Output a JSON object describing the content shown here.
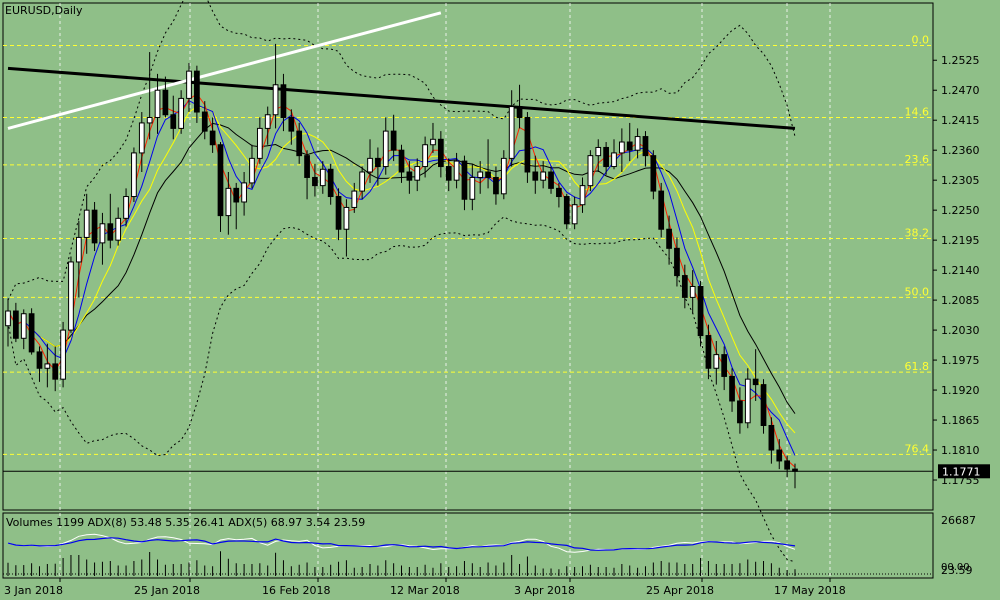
{
  "chart_data": {
    "type": "candlestick",
    "title": "EURUSD,Daily",
    "y_axis": {
      "range": [
        1.17,
        1.263
      ],
      "ticks": [
        "1.2525",
        "1.2470",
        "1.2415",
        "1.2360",
        "1.2305",
        "1.2250",
        "1.2195",
        "1.2140",
        "1.2085",
        "1.2030",
        "1.1975",
        "1.1920",
        "1.1865",
        "1.1810",
        "1.1755"
      ]
    },
    "current_price": "1.1771",
    "x_axis": {
      "labels": [
        "3 Jan 2018",
        "25 Jan 2018",
        "16 Feb 2018",
        "12 Mar 2018",
        "3 Apr 2018",
        "25 Apr 2018",
        "17 May 2018"
      ]
    },
    "fibonacci_levels": [
      {
        "label": "0.0",
        "price": 1.2552
      },
      {
        "label": "14.6",
        "price": 1.242
      },
      {
        "label": "23.6",
        "price": 1.2333
      },
      {
        "label": "38.2",
        "price": 1.2198
      },
      {
        "label": "50.0",
        "price": 1.209
      },
      {
        "label": "61.8",
        "price": 1.1953
      },
      {
        "label": "76.4",
        "price": 1.1802
      }
    ],
    "trendlines": [
      {
        "name": "resistance",
        "color": "#000000",
        "from": {
          "bar": 0,
          "price": 1.251
        },
        "to": {
          "bar": 100,
          "price": 1.24
        }
      },
      {
        "name": "support",
        "color": "#ffffff",
        "from": {
          "bar": 0,
          "price": 1.24
        },
        "to": {
          "bar": 55,
          "price": 1.2612
        }
      }
    ],
    "candles": [
      {
        "o": 1.2038,
        "h": 1.2088,
        "l": 1.2,
        "c": 1.2065
      },
      {
        "o": 1.2065,
        "h": 1.208,
        "l": 1.2008,
        "c": 1.2015
      },
      {
        "o": 1.2015,
        "h": 1.2068,
        "l": 1.1995,
        "c": 1.206
      },
      {
        "o": 1.206,
        "h": 1.207,
        "l": 1.1985,
        "c": 1.199
      },
      {
        "o": 1.199,
        "h": 1.2,
        "l": 1.1935,
        "c": 1.196
      },
      {
        "o": 1.196,
        "h": 1.2005,
        "l": 1.1925,
        "c": 1.1968
      },
      {
        "o": 1.1968,
        "h": 1.2,
        "l": 1.1918,
        "c": 1.194
      },
      {
        "o": 1.194,
        "h": 1.2045,
        "l": 1.1925,
        "c": 1.203
      },
      {
        "o": 1.203,
        "h": 1.2165,
        "l": 1.2025,
        "c": 1.2155
      },
      {
        "o": 1.2155,
        "h": 1.223,
        "l": 1.209,
        "c": 1.22
      },
      {
        "o": 1.22,
        "h": 1.228,
        "l": 1.217,
        "c": 1.225
      },
      {
        "o": 1.225,
        "h": 1.2265,
        "l": 1.2175,
        "c": 1.219
      },
      {
        "o": 1.219,
        "h": 1.2245,
        "l": 1.215,
        "c": 1.2225
      },
      {
        "o": 1.2225,
        "h": 1.228,
        "l": 1.218,
        "c": 1.2195
      },
      {
        "o": 1.2195,
        "h": 1.2255,
        "l": 1.2185,
        "c": 1.2235
      },
      {
        "o": 1.2235,
        "h": 1.229,
        "l": 1.222,
        "c": 1.2275
      },
      {
        "o": 1.2275,
        "h": 1.2365,
        "l": 1.2265,
        "c": 1.2355
      },
      {
        "o": 1.2355,
        "h": 1.243,
        "l": 1.232,
        "c": 1.241
      },
      {
        "o": 1.241,
        "h": 1.254,
        "l": 1.238,
        "c": 1.242
      },
      {
        "o": 1.242,
        "h": 1.25,
        "l": 1.239,
        "c": 1.247
      },
      {
        "o": 1.247,
        "h": 1.2495,
        "l": 1.242,
        "c": 1.2425
      },
      {
        "o": 1.2425,
        "h": 1.246,
        "l": 1.238,
        "c": 1.24
      },
      {
        "o": 1.24,
        "h": 1.247,
        "l": 1.239,
        "c": 1.2455
      },
      {
        "o": 1.2455,
        "h": 1.252,
        "l": 1.243,
        "c": 1.2505
      },
      {
        "o": 1.2505,
        "h": 1.2515,
        "l": 1.241,
        "c": 1.243
      },
      {
        "o": 1.243,
        "h": 1.245,
        "l": 1.238,
        "c": 1.2395
      },
      {
        "o": 1.2395,
        "h": 1.242,
        "l": 1.2355,
        "c": 1.237
      },
      {
        "o": 1.237,
        "h": 1.2375,
        "l": 1.221,
        "c": 1.224
      },
      {
        "o": 1.224,
        "h": 1.232,
        "l": 1.2205,
        "c": 1.229
      },
      {
        "o": 1.229,
        "h": 1.23,
        "l": 1.2215,
        "c": 1.2265
      },
      {
        "o": 1.2265,
        "h": 1.232,
        "l": 1.224,
        "c": 1.23
      },
      {
        "o": 1.23,
        "h": 1.237,
        "l": 1.229,
        "c": 1.2345
      },
      {
        "o": 1.2345,
        "h": 1.242,
        "l": 1.2335,
        "c": 1.24
      },
      {
        "o": 1.24,
        "h": 1.244,
        "l": 1.237,
        "c": 1.2425
      },
      {
        "o": 1.2425,
        "h": 1.2555,
        "l": 1.24,
        "c": 1.248
      },
      {
        "o": 1.248,
        "h": 1.25,
        "l": 1.2395,
        "c": 1.242
      },
      {
        "o": 1.242,
        "h": 1.2435,
        "l": 1.237,
        "c": 1.2395
      },
      {
        "o": 1.2395,
        "h": 1.241,
        "l": 1.2335,
        "c": 1.235
      },
      {
        "o": 1.235,
        "h": 1.236,
        "l": 1.227,
        "c": 1.231
      },
      {
        "o": 1.231,
        "h": 1.2335,
        "l": 1.2275,
        "c": 1.2295
      },
      {
        "o": 1.2295,
        "h": 1.234,
        "l": 1.228,
        "c": 1.2325
      },
      {
        "o": 1.2325,
        "h": 1.2335,
        "l": 1.226,
        "c": 1.2275
      },
      {
        "o": 1.2275,
        "h": 1.229,
        "l": 1.2195,
        "c": 1.2215
      },
      {
        "o": 1.2215,
        "h": 1.227,
        "l": 1.2165,
        "c": 1.2255
      },
      {
        "o": 1.2255,
        "h": 1.23,
        "l": 1.2245,
        "c": 1.2285
      },
      {
        "o": 1.2285,
        "h": 1.233,
        "l": 1.227,
        "c": 1.232
      },
      {
        "o": 1.232,
        "h": 1.238,
        "l": 1.23,
        "c": 1.2345
      },
      {
        "o": 1.2345,
        "h": 1.2365,
        "l": 1.2295,
        "c": 1.233
      },
      {
        "o": 1.233,
        "h": 1.242,
        "l": 1.2315,
        "c": 1.2395
      },
      {
        "o": 1.2395,
        "h": 1.2425,
        "l": 1.234,
        "c": 1.236
      },
      {
        "o": 1.236,
        "h": 1.237,
        "l": 1.23,
        "c": 1.232
      },
      {
        "o": 1.232,
        "h": 1.234,
        "l": 1.228,
        "c": 1.2305
      },
      {
        "o": 1.2305,
        "h": 1.2345,
        "l": 1.2285,
        "c": 1.233
      },
      {
        "o": 1.233,
        "h": 1.2385,
        "l": 1.231,
        "c": 1.237
      },
      {
        "o": 1.237,
        "h": 1.241,
        "l": 1.2355,
        "c": 1.238
      },
      {
        "o": 1.238,
        "h": 1.2395,
        "l": 1.231,
        "c": 1.233
      },
      {
        "o": 1.233,
        "h": 1.2345,
        "l": 1.2285,
        "c": 1.2305
      },
      {
        "o": 1.2305,
        "h": 1.2355,
        "l": 1.229,
        "c": 1.234
      },
      {
        "o": 1.234,
        "h": 1.235,
        "l": 1.225,
        "c": 1.227
      },
      {
        "o": 1.227,
        "h": 1.2335,
        "l": 1.225,
        "c": 1.231
      },
      {
        "o": 1.231,
        "h": 1.234,
        "l": 1.228,
        "c": 1.232
      },
      {
        "o": 1.232,
        "h": 1.238,
        "l": 1.229,
        "c": 1.231
      },
      {
        "o": 1.231,
        "h": 1.233,
        "l": 1.226,
        "c": 1.228
      },
      {
        "o": 1.228,
        "h": 1.236,
        "l": 1.227,
        "c": 1.2345
      },
      {
        "o": 1.2345,
        "h": 1.247,
        "l": 1.233,
        "c": 1.244
      },
      {
        "o": 1.244,
        "h": 1.248,
        "l": 1.24,
        "c": 1.242
      },
      {
        "o": 1.242,
        "h": 1.243,
        "l": 1.23,
        "c": 1.232
      },
      {
        "o": 1.232,
        "h": 1.235,
        "l": 1.228,
        "c": 1.2305
      },
      {
        "o": 1.2305,
        "h": 1.234,
        "l": 1.229,
        "c": 1.232
      },
      {
        "o": 1.232,
        "h": 1.233,
        "l": 1.228,
        "c": 1.229
      },
      {
        "o": 1.229,
        "h": 1.23,
        "l": 1.2255,
        "c": 1.2275
      },
      {
        "o": 1.2275,
        "h": 1.228,
        "l": 1.2215,
        "c": 1.2225
      },
      {
        "o": 1.2225,
        "h": 1.2275,
        "l": 1.2215,
        "c": 1.226
      },
      {
        "o": 1.226,
        "h": 1.231,
        "l": 1.2245,
        "c": 1.2295
      },
      {
        "o": 1.2295,
        "h": 1.236,
        "l": 1.2285,
        "c": 1.235
      },
      {
        "o": 1.235,
        "h": 1.238,
        "l": 1.232,
        "c": 1.2365
      },
      {
        "o": 1.2365,
        "h": 1.2375,
        "l": 1.2315,
        "c": 1.233
      },
      {
        "o": 1.233,
        "h": 1.238,
        "l": 1.2325,
        "c": 1.2355
      },
      {
        "o": 1.2355,
        "h": 1.24,
        "l": 1.232,
        "c": 1.2375
      },
      {
        "o": 1.2375,
        "h": 1.241,
        "l": 1.234,
        "c": 1.236
      },
      {
        "o": 1.236,
        "h": 1.24,
        "l": 1.2345,
        "c": 1.2385
      },
      {
        "o": 1.2385,
        "h": 1.2395,
        "l": 1.233,
        "c": 1.235
      },
      {
        "o": 1.235,
        "h": 1.236,
        "l": 1.227,
        "c": 1.2285
      },
      {
        "o": 1.2285,
        "h": 1.23,
        "l": 1.22,
        "c": 1.2215
      },
      {
        "o": 1.2215,
        "h": 1.224,
        "l": 1.215,
        "c": 1.218
      },
      {
        "o": 1.218,
        "h": 1.22,
        "l": 1.211,
        "c": 1.213
      },
      {
        "o": 1.213,
        "h": 1.215,
        "l": 1.207,
        "c": 1.209
      },
      {
        "o": 1.209,
        "h": 1.214,
        "l": 1.206,
        "c": 1.211
      },
      {
        "o": 1.211,
        "h": 1.212,
        "l": 1.2,
        "c": 1.202
      },
      {
        "o": 1.202,
        "h": 1.204,
        "l": 1.194,
        "c": 1.196
      },
      {
        "o": 1.196,
        "h": 1.201,
        "l": 1.193,
        "c": 1.1985
      },
      {
        "o": 1.1985,
        "h": 1.2,
        "l": 1.192,
        "c": 1.1945
      },
      {
        "o": 1.1945,
        "h": 1.196,
        "l": 1.188,
        "c": 1.19
      },
      {
        "o": 1.19,
        "h": 1.1925,
        "l": 1.184,
        "c": 1.186
      },
      {
        "o": 1.186,
        "h": 1.196,
        "l": 1.185,
        "c": 1.194
      },
      {
        "o": 1.194,
        "h": 1.1995,
        "l": 1.19,
        "c": 1.193
      },
      {
        "o": 1.193,
        "h": 1.194,
        "l": 1.184,
        "c": 1.1855
      },
      {
        "o": 1.1855,
        "h": 1.187,
        "l": 1.1785,
        "c": 1.181
      },
      {
        "o": 1.181,
        "h": 1.183,
        "l": 1.1775,
        "c": 1.179
      },
      {
        "o": 1.179,
        "h": 1.18,
        "l": 1.176,
        "c": 1.1775
      },
      {
        "o": 1.1775,
        "h": 1.1785,
        "l": 1.174,
        "c": 1.1771
      }
    ],
    "indicator_title": "Volumes 1199 ADX(8) 53.48 5.35 26.41 ADX(5) 68.97 3.54 23.59",
    "indicator_axis": {
      "top": "26687",
      "bottom": "23.59",
      "bottom2": "00.00"
    },
    "colors": {
      "background": "#8fbf88",
      "fib": "#ffff33",
      "grid": "#ffffff",
      "ma_fast": "#ff2200",
      "ma_mid": "#0000ee",
      "ma_slow": "#ffff00",
      "ma_long": "#000000"
    }
  }
}
